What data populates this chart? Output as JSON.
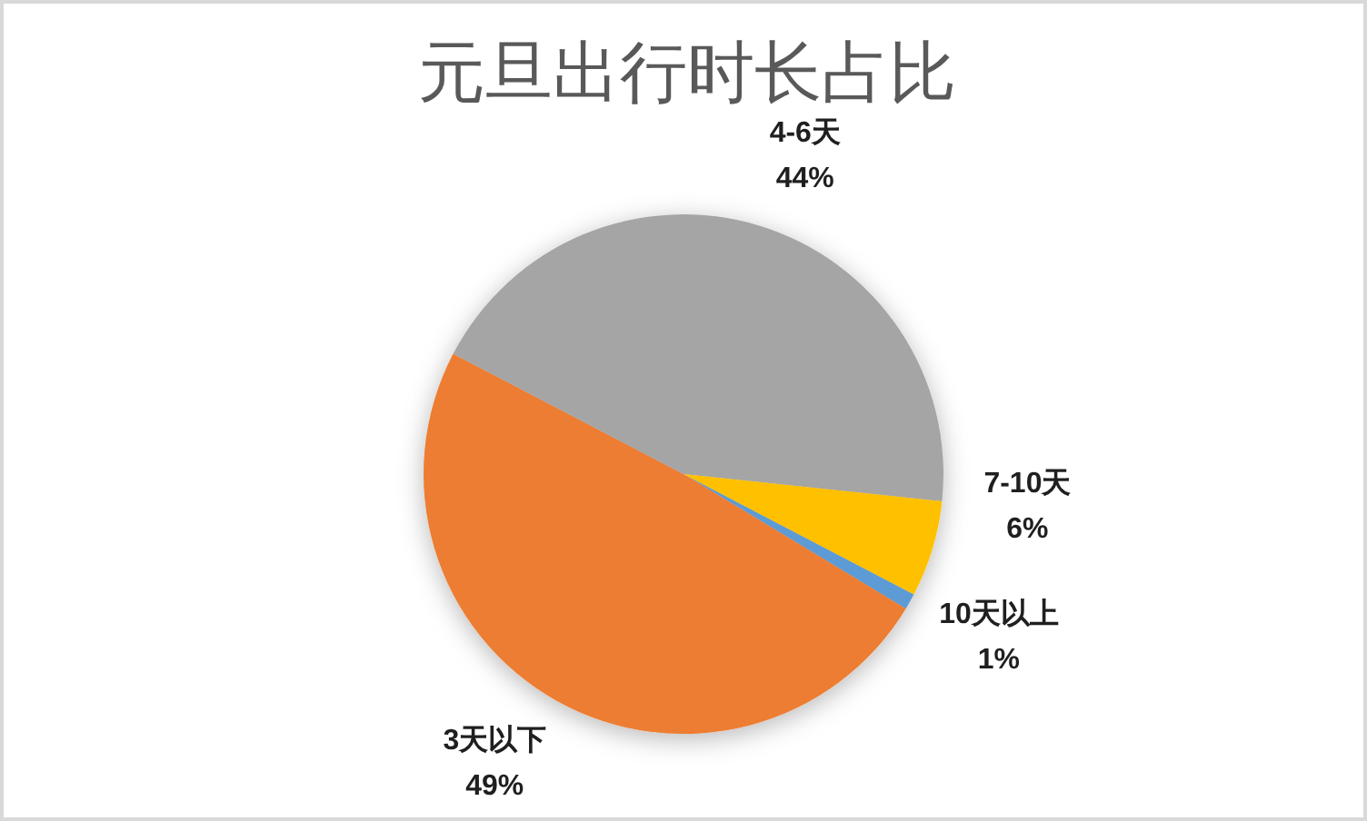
{
  "chart_data": {
    "type": "pie",
    "title": "元旦出行时长占比",
    "categories": [
      "10天以上",
      "3天以下",
      "4-6天",
      "7-10天"
    ],
    "values": [
      1,
      49,
      44,
      6
    ],
    "colors": [
      "#5b9bd5",
      "#ed7d31",
      "#a5a5a5",
      "#ffc000"
    ],
    "value_labels": [
      "1%",
      "49%",
      "44%",
      "6%"
    ]
  }
}
